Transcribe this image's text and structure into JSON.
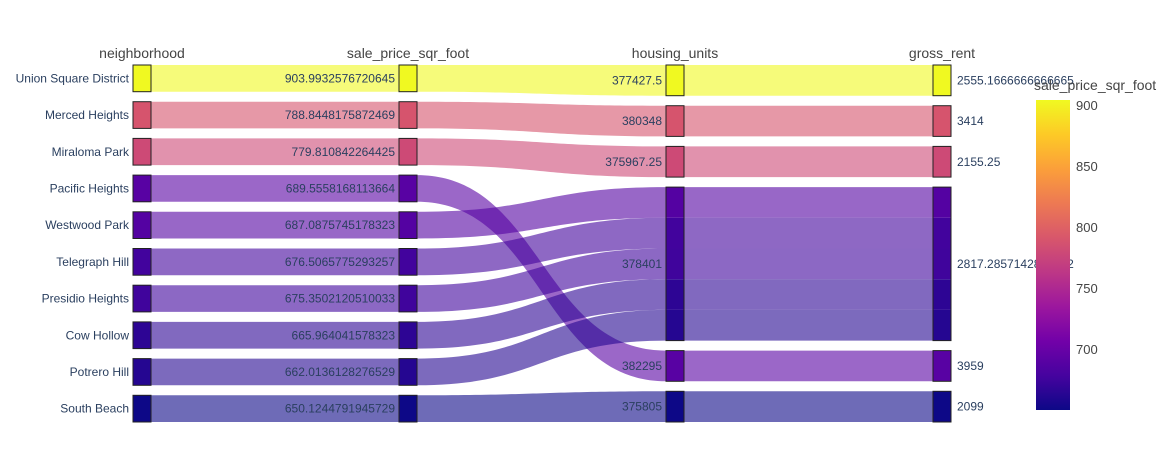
{
  "chart_data": {
    "type": "parallel_categories",
    "color_variable": "sale_price_sqr_foot",
    "colorscale_name": "plasma",
    "colorscale": [
      "#0d0887",
      "#46039f",
      "#7201a8",
      "#9c179e",
      "#bd3786",
      "#d8576b",
      "#ed7953",
      "#fb9f3a",
      "#fdca26",
      "#f0f921"
    ],
    "color_range": [
      650.1244791945729,
      903.9932576720645
    ],
    "colorbar": {
      "title": "sale_price_sqr_foot",
      "ticks": [
        700,
        750,
        800,
        850,
        900
      ]
    },
    "dimensions": [
      {
        "label": "neighborhood",
        "categories": [
          "Union Square District",
          "Merced Heights",
          "Miraloma Park",
          "Pacific Heights",
          "Westwood Park",
          "Telegraph Hill",
          "Presidio Heights",
          "Cow Hollow",
          "Potrero Hill",
          "South Beach"
        ]
      },
      {
        "label": "sale_price_sqr_foot",
        "categories": [
          "903.9932576720645",
          "788.8448175872469",
          "779.810842264425",
          "689.5558168113664",
          "687.0875745178323",
          "676.5065775293257",
          "675.3502120510033",
          "665.964041578323",
          "662.0136128276529",
          "650.1244791945729"
        ]
      },
      {
        "label": "housing_units",
        "categories": [
          "377427.5",
          "380348",
          "375967.25",
          "378401",
          "382295",
          "375805"
        ]
      },
      {
        "label": "gross_rent",
        "categories": [
          "2555.1666666666665",
          "3414",
          "2155.25",
          "2817.2857142857142",
          "3959",
          "2099"
        ]
      }
    ],
    "rows": [
      {
        "neighborhood": "Union Square District",
        "sale_price_sqr_foot": 903.9932576720645,
        "housing_units": "377427.5",
        "gross_rent": "2555.1666666666665"
      },
      {
        "neighborhood": "Merced Heights",
        "sale_price_sqr_foot": 788.8448175872469,
        "housing_units": "380348",
        "gross_rent": "3414"
      },
      {
        "neighborhood": "Miraloma Park",
        "sale_price_sqr_foot": 779.810842264425,
        "housing_units": "375967.25",
        "gross_rent": "2155.25"
      },
      {
        "neighborhood": "Pacific Heights",
        "sale_price_sqr_foot": 689.5558168113664,
        "housing_units": "382295",
        "gross_rent": "3959"
      },
      {
        "neighborhood": "Westwood Park",
        "sale_price_sqr_foot": 687.0875745178323,
        "housing_units": "378401",
        "gross_rent": "2817.2857142857142"
      },
      {
        "neighborhood": "Telegraph Hill",
        "sale_price_sqr_foot": 676.5065775293257,
        "housing_units": "378401",
        "gross_rent": "2817.2857142857142"
      },
      {
        "neighborhood": "Presidio Heights",
        "sale_price_sqr_foot": 675.3502120510033,
        "housing_units": "378401",
        "gross_rent": "2817.2857142857142"
      },
      {
        "neighborhood": "Cow Hollow",
        "sale_price_sqr_foot": 665.964041578323,
        "housing_units": "378401",
        "gross_rent": "2817.2857142857142"
      },
      {
        "neighborhood": "Potrero Hill",
        "sale_price_sqr_foot": 662.0136128276529,
        "housing_units": "378401",
        "gross_rent": "2817.2857142857142"
      },
      {
        "neighborhood": "South Beach",
        "sale_price_sqr_foot": 650.1244791945729,
        "housing_units": "375805",
        "gross_rent": "2099"
      }
    ]
  }
}
